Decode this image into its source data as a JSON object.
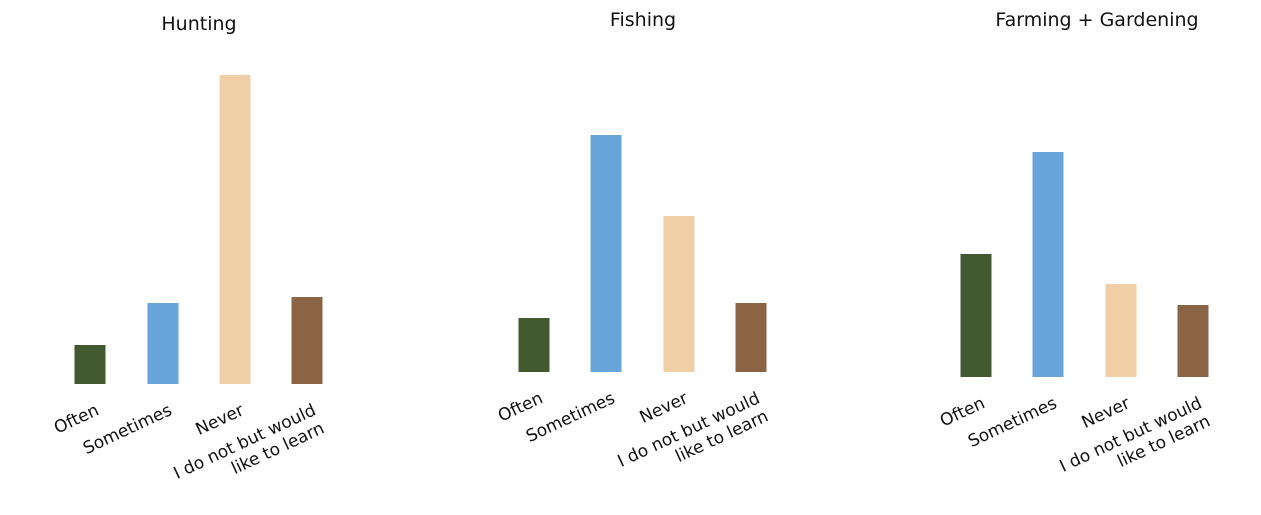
{
  "chart_data": [
    {
      "type": "bar",
      "title": "Hunting",
      "categories": [
        "Often",
        "Sometimes",
        "Never",
        "I do not but would like to learn"
      ],
      "category_lines": [
        [
          "Often"
        ],
        [
          "Sometimes"
        ],
        [
          "Never"
        ],
        [
          "I do not but would",
          "like to learn"
        ]
      ],
      "values": [
        13,
        27,
        103,
        29
      ],
      "colors": [
        "#435a30",
        "#66a4da",
        "#f1cfa6",
        "#8a6444"
      ],
      "xlabel": "",
      "ylabel": "",
      "ylim": [
        0,
        110
      ],
      "grid": false,
      "legend": "none"
    },
    {
      "type": "bar",
      "title": "Fishing",
      "categories": [
        "Often",
        "Sometimes",
        "Never",
        "I do not but would like to learn"
      ],
      "category_lines": [
        [
          "Often"
        ],
        [
          "Sometimes"
        ],
        [
          "Never"
        ],
        [
          "I do not but would",
          "like to learn"
        ]
      ],
      "values": [
        18,
        79,
        52,
        23
      ],
      "colors": [
        "#435a30",
        "#66a4da",
        "#f1cfa6",
        "#8a6444"
      ],
      "xlabel": "",
      "ylabel": "",
      "ylim": [
        0,
        110
      ],
      "grid": false,
      "legend": "none"
    },
    {
      "type": "bar",
      "title": "Farming + Gardening",
      "categories": [
        "Often",
        "Sometimes",
        "Never",
        "I do not but would like to learn"
      ],
      "category_lines": [
        [
          "Often"
        ],
        [
          "Sometimes"
        ],
        [
          "Never"
        ],
        [
          "I do not but would",
          "like to learn"
        ]
      ],
      "values": [
        41,
        75,
        31,
        24
      ],
      "colors": [
        "#435a30",
        "#66a4da",
        "#f1cfa6",
        "#8a6444"
      ],
      "xlabel": "",
      "ylabel": "",
      "ylim": [
        0,
        110
      ],
      "grid": false,
      "legend": "none"
    }
  ]
}
